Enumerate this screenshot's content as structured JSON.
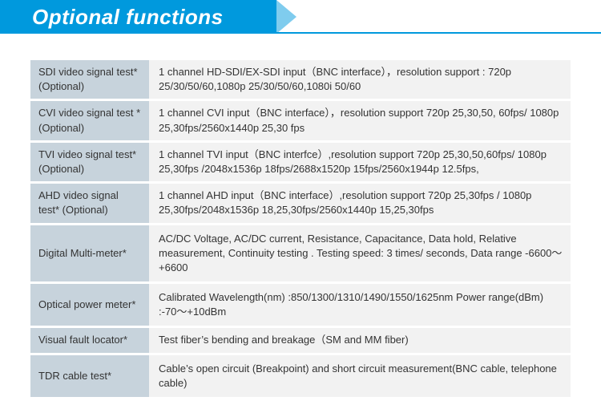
{
  "header": {
    "title": "Optional functions"
  },
  "colors": {
    "accent": "#0099dd",
    "label_bg": "#c7d3dc",
    "value_bg": "#f2f2f2",
    "text": "#333333"
  },
  "rows": [
    {
      "label": "SDI video signal test* (Optional)",
      "value": "1 channel HD-SDI/EX-SDI input（BNC interface），resolution support : 720p 25/30/50/60,1080p 25/30/50/60,1080i 50/60"
    },
    {
      "label": "CVI video signal test * (Optional)",
      "value": "1 channel CVI input（BNC interface），resolution support 720p 25,30,50, 60fps/ 1080p 25,30fps/2560x1440p 25,30 fps"
    },
    {
      "label": "TVI video signal test* (Optional)",
      "value": "1 channel TVI input（BNC interfce）,resolution support 720p 25,30,50,60fps/ 1080p 25,30fps /2048x1536p 18fps/2688x1520p 15fps/2560x1944p 12.5fps,"
    },
    {
      "label": "AHD video signal test* (Optional)",
      "value": "1 channel AHD input（BNC interface）,resolution support 720p 25,30fps / 1080p 25,30fps/2048x1536p 18,25,30fps/2560x1440p 15,25,30fps"
    },
    {
      "label": "Digital Multi-meter*",
      "value": "AC/DC Voltage, AC/DC current, Resistance, Capacitance, Data hold, Relative measurement, Continuity testing . Testing speed: 3 times/ seconds, Data range -6600～+6600"
    },
    {
      "label": "Optical power meter*",
      "value": "Calibrated Wavelength(nm) :850/1300/1310/1490/1550/1625nm Power range(dBm) :-70～+10dBm"
    },
    {
      "label": "Visual fault locator*",
      "value": "Test fiber’s bending and breakage（SM and MM fiber)"
    },
    {
      "label": "TDR cable test*",
      "value": "Cable’s open circuit (Breakpoint) and short circuit measurement(BNC cable, telephone cable)"
    }
  ]
}
